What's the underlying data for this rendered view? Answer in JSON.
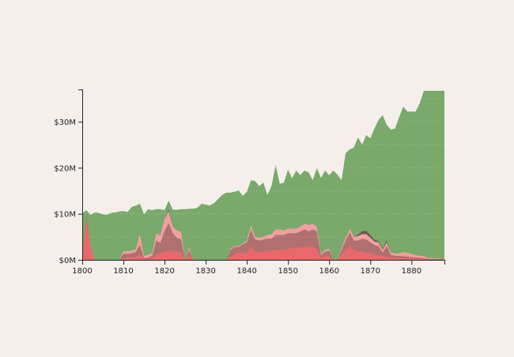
{
  "chart_data": {
    "type": "area",
    "stacked": true,
    "title": "",
    "xlabel": "",
    "ylabel": "",
    "xlim": [
      1800,
      1888
    ],
    "ylim": [
      0,
      37
    ],
    "x_ticks": [
      1800,
      1810,
      1820,
      1830,
      1840,
      1850,
      1860,
      1870,
      1880
    ],
    "x_tick_labels": [
      "1800",
      "1810",
      "1820",
      "1830",
      "1840",
      "1850",
      "1860",
      "1870",
      "1880"
    ],
    "y_ticks": [
      0,
      10,
      20,
      30
    ],
    "y_tick_labels": [
      "$0M",
      "$10M",
      "$20M",
      "$30M"
    ],
    "grid": "dotted horizontal",
    "legend": null,
    "x": [
      1800,
      1801,
      1802,
      1803,
      1804,
      1805,
      1806,
      1807,
      1808,
      1809,
      1810,
      1811,
      1812,
      1813,
      1814,
      1815,
      1816,
      1817,
      1818,
      1819,
      1820,
      1821,
      1822,
      1823,
      1824,
      1825,
      1826,
      1827,
      1828,
      1829,
      1830,
      1831,
      1832,
      1833,
      1834,
      1835,
      1836,
      1837,
      1838,
      1839,
      1840,
      1841,
      1842,
      1843,
      1844,
      1845,
      1846,
      1847,
      1848,
      1849,
      1850,
      1851,
      1852,
      1853,
      1854,
      1855,
      1856,
      1857,
      1858,
      1859,
      1860,
      1861,
      1862,
      1863,
      1864,
      1865,
      1866,
      1867,
      1868,
      1869,
      1870,
      1871,
      1872,
      1873,
      1874,
      1875,
      1876,
      1877,
      1878,
      1879,
      1880,
      1881,
      1882,
      1883,
      1884,
      1885,
      1886,
      1887,
      1888
    ],
    "series": [
      {
        "name": "red",
        "color": "#e8696b",
        "values": [
          0,
          9.5,
          3,
          0,
          0,
          0,
          0,
          0,
          0,
          0,
          0.3,
          0.5,
          0.6,
          0.5,
          1.2,
          0.2,
          0.2,
          0.3,
          1.2,
          1.5,
          1.8,
          2.0,
          2.0,
          1.8,
          1.5,
          0,
          1.2,
          0,
          0,
          0,
          0,
          0,
          0,
          0,
          0,
          0,
          0.6,
          1.2,
          1.6,
          1.4,
          1.6,
          3.0,
          1.6,
          1.8,
          1.8,
          2.0,
          2.0,
          2.2,
          2.2,
          2.2,
          2.4,
          2.6,
          2.6,
          2.8,
          2.8,
          3.0,
          2.8,
          2.4,
          0.4,
          1.0,
          0.8,
          0,
          0,
          1.2,
          2.0,
          3.0,
          2.2,
          1.8,
          1.8,
          1.6,
          1.4,
          1.2,
          1.0,
          0.8,
          0.6,
          0.5,
          0.4,
          0.4,
          0.4,
          0.3,
          0.3,
          0.2,
          0.2,
          0.2,
          0.1,
          0.1,
          0.1,
          0.1,
          0.1
        ]
      },
      {
        "name": "mauve",
        "color": "#b07070",
        "values": [
          0,
          0,
          0,
          0,
          0,
          0,
          0,
          0,
          0,
          0,
          1.0,
          0.8,
          0.8,
          1.2,
          2.0,
          0.2,
          0.3,
          0.6,
          3.0,
          2.2,
          4.5,
          6.0,
          3.8,
          3.0,
          3.0,
          0,
          1.0,
          0,
          0,
          0,
          0,
          0,
          0,
          0,
          0,
          0,
          1.6,
          1.6,
          1.2,
          2.0,
          2.2,
          3.6,
          2.8,
          2.4,
          2.6,
          2.6,
          2.6,
          3.2,
          3.2,
          3.2,
          3.4,
          3.2,
          3.2,
          3.4,
          3.8,
          3.2,
          3.8,
          3.8,
          0.6,
          0.8,
          1.2,
          0,
          0,
          1.0,
          2.2,
          3.0,
          2.0,
          2.4,
          2.8,
          2.8,
          2.4,
          2.0,
          2.0,
          0.8,
          2.4,
          0.6,
          0.5,
          0.4,
          0.4,
          0.4,
          0.3,
          0.3,
          0.3,
          0.2,
          0.1,
          0.1,
          0.1,
          0.1,
          0
        ]
      },
      {
        "name": "pink",
        "color": "#f0a0a0",
        "values": [
          0,
          0,
          0,
          0,
          0,
          0,
          0,
          0,
          0,
          0,
          0.6,
          0.6,
          0.6,
          0.6,
          2.4,
          0.4,
          0.6,
          0.6,
          1.6,
          1.6,
          2.6,
          2.6,
          1.4,
          1.6,
          1.6,
          0,
          0.6,
          0,
          0,
          0,
          0,
          0,
          0,
          0,
          0,
          0,
          0.2,
          0.2,
          0.2,
          0.2,
          0.4,
          1.0,
          0.6,
          0.6,
          0.6,
          0.8,
          1.0,
          1.2,
          1.2,
          1.0,
          1.0,
          1.0,
          1.0,
          1.0,
          1.2,
          1.4,
          1.2,
          1.0,
          0.3,
          0.4,
          0.4,
          0,
          0,
          0.4,
          0.6,
          0.8,
          0.8,
          1.0,
          1.0,
          1.2,
          1.0,
          0.8,
          0.8,
          0.6,
          0.8,
          0.5,
          0.5,
          0.6,
          0.9,
          0.8,
          0.7,
          0.5,
          0.4,
          0.4,
          0.2,
          0.2,
          0.1,
          0.1,
          0
        ]
      },
      {
        "name": "dark",
        "color": "#6a5a52",
        "values": [
          0,
          0.2,
          0,
          0,
          0,
          0,
          0,
          0,
          0,
          0,
          0,
          0,
          0,
          0,
          0,
          0,
          0,
          0,
          0,
          0,
          0,
          0.3,
          0,
          0,
          0,
          0,
          0,
          0,
          0,
          0,
          0,
          0,
          0,
          0,
          0,
          0,
          0,
          0,
          0,
          0,
          0,
          0,
          0,
          0,
          0,
          0,
          0,
          0,
          0,
          0,
          0,
          0,
          0,
          0,
          0,
          0,
          0,
          0,
          0,
          0,
          0,
          0,
          0,
          0,
          0,
          0,
          0,
          0.3,
          0.6,
          0.7,
          0.6,
          0.3,
          0.3,
          0.2,
          0.4,
          0,
          0,
          0,
          0,
          0,
          0,
          0,
          0,
          0,
          0,
          0,
          0,
          0,
          0
        ]
      },
      {
        "name": "green",
        "color": "#79a96b",
        "values": "remainder to total"
      }
    ],
    "total": [
      10.1,
      10.8,
      9.8,
      10.3,
      10.2,
      9.9,
      9.8,
      10.2,
      10.3,
      10.5,
      10.6,
      10.4,
      11.5,
      11.8,
      12.2,
      9.9,
      11.0,
      10.8,
      11.0,
      11.0,
      10.8,
      12.9,
      10.9,
      10.9,
      11.0,
      11.0,
      11.1,
      11.1,
      11.3,
      12.2,
      12.0,
      11.8,
      12.3,
      13.2,
      14.1,
      14.6,
      14.6,
      14.8,
      15.1,
      13.9,
      14.8,
      17.3,
      17.1,
      16.0,
      16.8,
      14.1,
      16.1,
      20.6,
      16.5,
      16.8,
      19.6,
      17.7,
      19.4,
      18.4,
      19.4,
      19.0,
      17.3,
      19.9,
      17.8,
      19.4,
      18.4,
      19.4,
      18.5,
      17.3,
      23.2,
      24.0,
      24.4,
      26.6,
      25.0,
      27.1,
      26.4,
      28.5,
      30.4,
      31.4,
      29.3,
      28.3,
      28.5,
      31.0,
      33.3,
      32.2,
      32.2,
      32.2,
      34.0,
      36.7,
      36.7,
      36.7,
      36.7,
      36.7,
      36.7
    ]
  }
}
